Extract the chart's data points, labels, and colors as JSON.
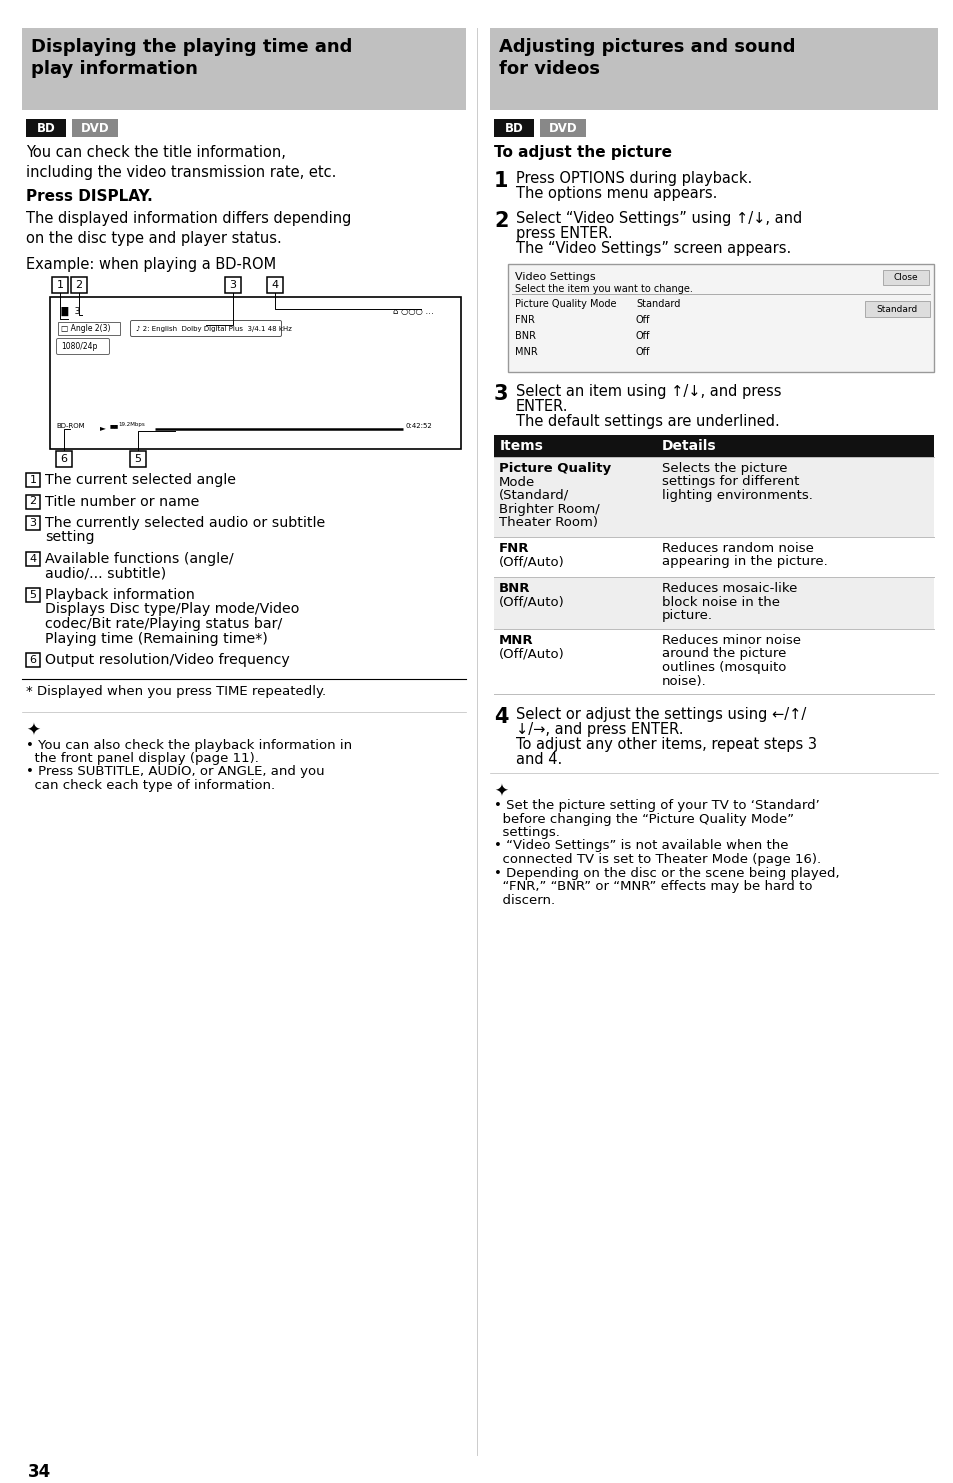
{
  "page_number": "34",
  "bg_color": "#ffffff",
  "title_bg": "#c0c0c0",
  "bd_bg": "#111111",
  "dvd_bg": "#888888",
  "left_title": "Displaying the playing time and\nplay information",
  "right_title": "Adjusting pictures and sound\nfor videos",
  "intro_text": "You can check the title information,\nincluding the video transmission rate, etc.",
  "press_display": "Press DISPLAY.",
  "press_display_body": "The displayed information differs depending\non the disc type and player status.",
  "example_label": "Example: when playing a BD-ROM",
  "diag_inner": [
    "▐▌ 3",
    "□ Angle 2(3)",
    "1080/24p",
    "♪ 2: English  Dolby Digital Plus  3/4.1 48 kHz",
    "BD-ROM",
    "0:42:52"
  ],
  "numbered_items": [
    [
      "The current selected angle"
    ],
    [
      "Title number or name"
    ],
    [
      "The currently selected audio or subtitle",
      "setting"
    ],
    [
      "Available functions (angle/",
      "audio/... subtitle)"
    ],
    [
      "Playback information",
      "Displays Disc type/Play mode/Video",
      "codec/Bit rate/Playing status bar/",
      "Playing time (Remaining time*)"
    ],
    [
      "Output resolution/Video frequency"
    ]
  ],
  "footnote": "* Displayed when you press TIME repeatedly.",
  "hint_left": [
    "• You can also check the playback information in",
    "  the front panel display (page 11).",
    "• Press SUBTITLE, AUDIO, or ANGLE, and you",
    "  can check each type of information."
  ],
  "right_subtitle": "To adjust the picture",
  "step1": [
    "Press OPTIONS during playback.",
    "The options menu appears."
  ],
  "step2": [
    "Select “Video Settings” using ↑/↓, and",
    "press ENTER.",
    "The “Video Settings” screen appears."
  ],
  "vs_rows": [
    [
      "Picture Quality Mode",
      "Standard"
    ],
    [
      "FNR",
      "Off"
    ],
    [
      "BNR",
      "Off"
    ],
    [
      "MNR",
      "Off"
    ]
  ],
  "step3": [
    "Select an item using ↑/↓, and press",
    "ENTER.",
    "The default settings are underlined."
  ],
  "tbl_headers": [
    "Items",
    "Details"
  ],
  "tbl_rows": [
    {
      "item": [
        "Picture Quality",
        "Mode",
        "(Standard/",
        "Brighter Room/",
        "Theater Room)"
      ],
      "detail": [
        "Selects the picture",
        "settings for different",
        "lighting environments."
      ]
    },
    {
      "item": [
        "FNR",
        "(Off/Auto)"
      ],
      "detail": [
        "Reduces random noise",
        "appearing in the picture."
      ]
    },
    {
      "item": [
        "BNR",
        "(Off/Auto)"
      ],
      "detail": [
        "Reduces mosaic-like",
        "block noise in the",
        "picture."
      ]
    },
    {
      "item": [
        "MNR",
        "(Off/Auto)"
      ],
      "detail": [
        "Reduces minor noise",
        "around the picture",
        "outlines (mosquito",
        "noise)."
      ]
    }
  ],
  "step4": [
    "Select or adjust the settings using ←/↑/",
    "↓/→, and press ENTER.",
    "To adjust any other items, repeat steps 3",
    "and 4."
  ],
  "hint_right": [
    "• Set the picture setting of your TV to ‘Standard’",
    "  before changing the “Picture Quality Mode”",
    "  settings.",
    "• “Video Settings” is not available when the",
    "  connected TV is set to Theater Mode (page 16).",
    "• Depending on the disc or the scene being played,",
    "  “FNR,” “BNR” or “MNR” effects may be hard to",
    "  discern."
  ]
}
